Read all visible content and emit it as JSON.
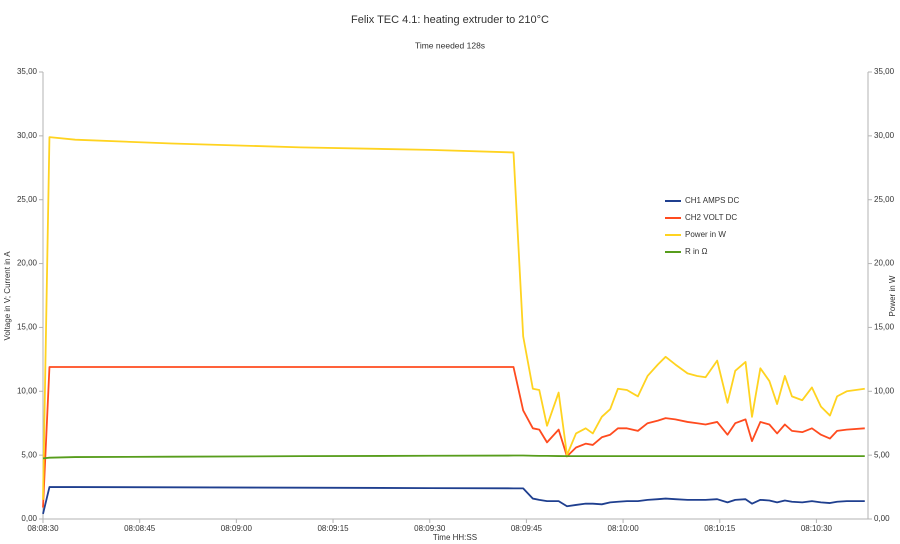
{
  "chart_data": {
    "type": "line",
    "title": "Felix TEC 4.1: heating extruder to 210°C",
    "subtitle": "Time needed 128s",
    "x_label": "Time HH:SS",
    "y_label": "Voltage in V; Current in A",
    "y2_label": "Power in W",
    "legend": "right",
    "x": [
      0,
      1,
      5,
      20,
      40,
      60,
      73,
      74.5,
      76,
      77,
      78.2,
      80,
      81.3,
      82.7,
      84.2,
      85.3,
      86.7,
      88,
      89.2,
      90.6,
      92.3,
      93.8,
      95.4,
      96.6,
      98.1,
      100,
      101.5,
      102.8,
      104.6,
      106.2,
      107.4,
      109,
      110,
      111.3,
      112.7,
      113.9,
      115.1,
      116.2,
      117.8,
      119.3,
      120.7,
      122.1,
      123.2,
      124.7,
      127.5
    ],
    "xlim": [
      0,
      128
    ],
    "xticks": [
      {
        "value": 0,
        "label": "08:08:30"
      },
      {
        "value": 15,
        "label": "08:08:45"
      },
      {
        "value": 30,
        "label": "08:09:00"
      },
      {
        "value": 45,
        "label": "08:09:15"
      },
      {
        "value": 60,
        "label": "08:09:30"
      },
      {
        "value": 75,
        "label": "08:09:45"
      },
      {
        "value": 90,
        "label": "08:10:00"
      },
      {
        "value": 105,
        "label": "08:10:15"
      },
      {
        "value": 120,
        "label": "08:10:30"
      }
    ],
    "ylim": [
      0,
      35
    ],
    "yticks": [
      {
        "value": 0,
        "label": "0,00"
      },
      {
        "value": 5,
        "label": "5,00"
      },
      {
        "value": 10,
        "label": "10,00"
      },
      {
        "value": 15,
        "label": "15,00"
      },
      {
        "value": 20,
        "label": "20,00"
      },
      {
        "value": 25,
        "label": "25,00"
      },
      {
        "value": 30,
        "label": "30,00"
      },
      {
        "value": 35,
        "label": "35,00"
      }
    ],
    "y2lim": [
      0,
      35
    ],
    "y2ticks": [
      {
        "value": 0,
        "label": "0,00"
      },
      {
        "value": 5,
        "label": "5,00"
      },
      {
        "value": 10,
        "label": "10,00"
      },
      {
        "value": 15,
        "label": "15,00"
      },
      {
        "value": 20,
        "label": "20,00"
      },
      {
        "value": 25,
        "label": "25,00"
      },
      {
        "value": 30,
        "label": "30,00"
      },
      {
        "value": 35,
        "label": "35,00"
      }
    ],
    "series": [
      {
        "name": "CH1 AMPS DC",
        "color": "#1f3f8f",
        "values": [
          0.4,
          2.5,
          2.5,
          2.48,
          2.45,
          2.42,
          2.4,
          2.4,
          1.6,
          1.5,
          1.4,
          1.4,
          1.0,
          1.1,
          1.2,
          1.2,
          1.15,
          1.3,
          1.35,
          1.4,
          1.4,
          1.5,
          1.55,
          1.6,
          1.55,
          1.5,
          1.5,
          1.5,
          1.55,
          1.3,
          1.5,
          1.55,
          1.2,
          1.5,
          1.45,
          1.3,
          1.45,
          1.35,
          1.3,
          1.4,
          1.3,
          1.25,
          1.35,
          1.4,
          1.4
        ]
      },
      {
        "name": "CH2 VOLT DC",
        "color": "#ff4b1f",
        "values": [
          0.9,
          11.9,
          11.9,
          11.9,
          11.9,
          11.9,
          11.9,
          8.5,
          7.1,
          7.0,
          6.0,
          7.0,
          4.9,
          5.6,
          5.9,
          5.8,
          6.4,
          6.6,
          7.1,
          7.1,
          6.9,
          7.5,
          7.7,
          7.9,
          7.8,
          7.6,
          7.5,
          7.4,
          7.6,
          6.6,
          7.5,
          7.8,
          6.1,
          7.6,
          7.4,
          6.7,
          7.4,
          6.9,
          6.8,
          7.1,
          6.6,
          6.3,
          6.9,
          7.0,
          7.1
        ]
      },
      {
        "name": "Power in W",
        "color": "#ffd320",
        "axis": "y2",
        "values": [
          1.5,
          29.9,
          29.7,
          29.4,
          29.1,
          28.9,
          28.7,
          14.3,
          10.2,
          10.1,
          7.3,
          9.9,
          5.0,
          6.7,
          7.1,
          6.7,
          8.0,
          8.6,
          10.2,
          10.1,
          9.6,
          11.2,
          12.1,
          12.7,
          12.1,
          11.4,
          11.2,
          11.1,
          12.4,
          9.1,
          11.6,
          12.3,
          8.0,
          11.8,
          10.8,
          9.0,
          11.2,
          9.6,
          9.3,
          10.3,
          8.8,
          8.1,
          9.6,
          10.0,
          10.2
        ]
      },
      {
        "name": "R in Ω",
        "color": "#579d1c",
        "values": [
          4.75,
          4.8,
          4.85,
          4.88,
          4.92,
          4.95,
          4.97,
          4.97,
          4.95,
          4.94,
          4.94,
          4.93,
          4.92,
          4.92,
          4.92,
          4.92,
          4.92,
          4.92,
          4.92,
          4.92,
          4.92,
          4.92,
          4.92,
          4.92,
          4.92,
          4.92,
          4.92,
          4.92,
          4.92,
          4.92,
          4.92,
          4.92,
          4.92,
          4.92,
          4.92,
          4.92,
          4.92,
          4.92,
          4.92,
          4.92,
          4.92,
          4.92,
          4.92,
          4.92,
          4.92
        ]
      }
    ]
  }
}
